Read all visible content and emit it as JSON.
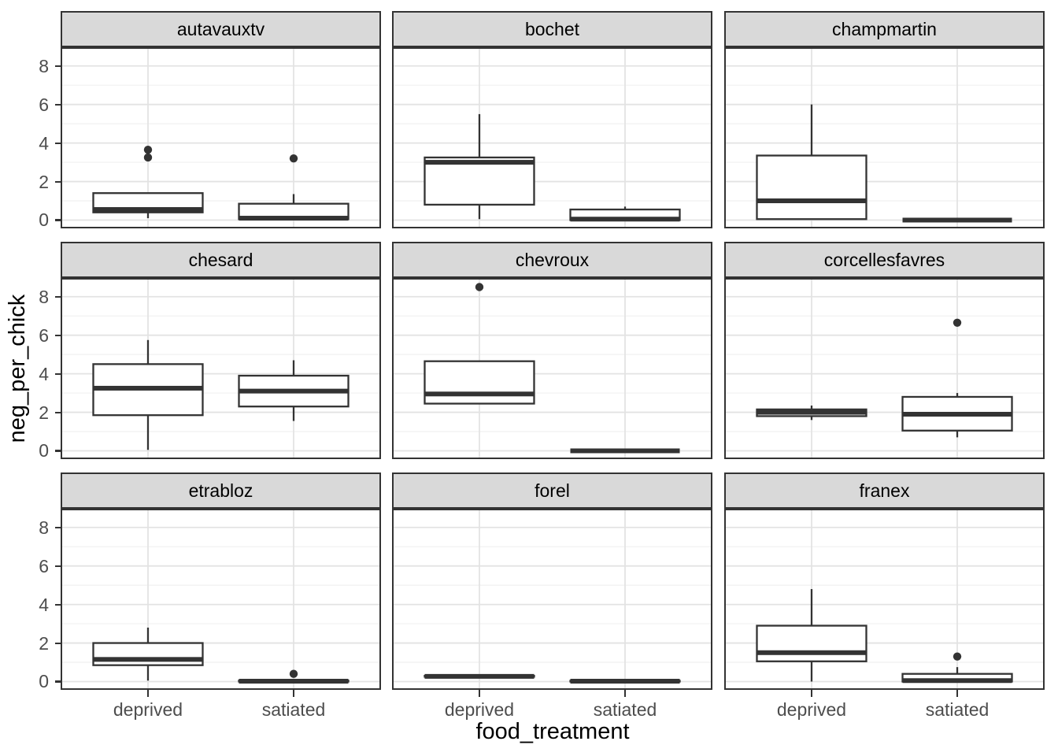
{
  "figure": {
    "xlabel": "food_treatment",
    "ylabel": "neg_per_chick",
    "x_categories": [
      "deprived",
      "satiated"
    ],
    "y_tick_labels": [
      "0",
      "2",
      "4",
      "6",
      "8"
    ],
    "y_major_ticks": [
      0,
      2,
      4,
      6,
      8
    ],
    "y_minor_ticks": [
      1,
      3,
      5,
      7
    ],
    "y_range": [
      -0.43,
      8.97
    ],
    "grid": true,
    "legend": "none",
    "facet_layout": "3x3"
  },
  "chart_data": {
    "type": "boxplot",
    "facet_titles": [
      "autavauxtv",
      "bochet",
      "champmartin",
      "chesard",
      "chevroux",
      "corcellesfavres",
      "etrabloz",
      "forel",
      "franex"
    ],
    "x": "food_treatment",
    "y": "neg_per_chick",
    "facets": [
      {
        "title": "autavauxtv",
        "boxes": [
          {
            "category": "deprived",
            "whisker_low": 0.1,
            "q1": 0.4,
            "median": 0.55,
            "q3": 1.4,
            "whisker_high": 1.4,
            "outliers": [
              3.25,
              3.65
            ]
          },
          {
            "category": "satiated",
            "whisker_low": 0.05,
            "q1": 0.05,
            "median": 0.1,
            "q3": 0.85,
            "whisker_high": 1.35,
            "outliers": [
              3.2
            ]
          }
        ]
      },
      {
        "title": "bochet",
        "boxes": [
          {
            "category": "deprived",
            "whisker_low": 0.05,
            "q1": 0.8,
            "median": 3.0,
            "q3": 3.25,
            "whisker_high": 5.5,
            "outliers": []
          },
          {
            "category": "satiated",
            "whisker_low": 0.0,
            "q1": 0.0,
            "median": 0.05,
            "q3": 0.55,
            "whisker_high": 0.7,
            "outliers": []
          }
        ]
      },
      {
        "title": "champmartin",
        "boxes": [
          {
            "category": "deprived",
            "whisker_low": 0.05,
            "q1": 0.05,
            "median": 1.0,
            "q3": 3.35,
            "whisker_high": 6.0,
            "outliers": []
          },
          {
            "category": "satiated",
            "whisker_low": 0.0,
            "q1": 0.0,
            "median": 0.0,
            "q3": 0.0,
            "whisker_high": 0.0,
            "outliers": []
          }
        ]
      },
      {
        "title": "chesard",
        "boxes": [
          {
            "category": "deprived",
            "whisker_low": 0.05,
            "q1": 1.85,
            "median": 3.25,
            "q3": 4.5,
            "whisker_high": 5.75,
            "outliers": []
          },
          {
            "category": "satiated",
            "whisker_low": 1.55,
            "q1": 2.3,
            "median": 3.1,
            "q3": 3.9,
            "whisker_high": 4.7,
            "outliers": []
          }
        ]
      },
      {
        "title": "chevroux",
        "boxes": [
          {
            "category": "deprived",
            "whisker_low": 2.45,
            "q1": 2.45,
            "median": 2.95,
            "q3": 4.65,
            "whisker_high": 4.65,
            "outliers": [
              8.5
            ]
          },
          {
            "category": "satiated",
            "whisker_low": 0.0,
            "q1": 0.0,
            "median": 0.0,
            "q3": 0.0,
            "whisker_high": 0.0,
            "outliers": []
          }
        ]
      },
      {
        "title": "corcellesfavres",
        "boxes": [
          {
            "category": "deprived",
            "whisker_low": 1.6,
            "q1": 1.8,
            "median": 2.0,
            "q3": 2.15,
            "whisker_high": 2.35,
            "outliers": []
          },
          {
            "category": "satiated",
            "whisker_low": 0.7,
            "q1": 1.05,
            "median": 1.9,
            "q3": 2.8,
            "whisker_high": 3.0,
            "outliers": [
              6.65
            ]
          }
        ]
      },
      {
        "title": "etrabloz",
        "boxes": [
          {
            "category": "deprived",
            "whisker_low": 0.05,
            "q1": 0.85,
            "median": 1.15,
            "q3": 2.0,
            "whisker_high": 2.8,
            "outliers": []
          },
          {
            "category": "satiated",
            "whisker_low": 0.0,
            "q1": 0.0,
            "median": 0.02,
            "q3": 0.05,
            "whisker_high": 0.05,
            "outliers": [
              0.4
            ]
          }
        ]
      },
      {
        "title": "forel",
        "boxes": [
          {
            "category": "deprived",
            "whisker_low": 0.25,
            "q1": 0.25,
            "median": 0.27,
            "q3": 0.3,
            "whisker_high": 0.3,
            "outliers": []
          },
          {
            "category": "satiated",
            "whisker_low": 0.0,
            "q1": 0.0,
            "median": 0.02,
            "q3": 0.04,
            "whisker_high": 0.04,
            "outliers": []
          }
        ]
      },
      {
        "title": "franex",
        "boxes": [
          {
            "category": "deprived",
            "whisker_low": 0.0,
            "q1": 1.05,
            "median": 1.5,
            "q3": 2.9,
            "whisker_high": 4.8,
            "outliers": []
          },
          {
            "category": "satiated",
            "whisker_low": 0.0,
            "q1": 0.0,
            "median": 0.05,
            "q3": 0.4,
            "whisker_high": 0.75,
            "outliers": [
              1.3
            ]
          }
        ]
      }
    ]
  },
  "colors": {
    "box_stroke": "#333333",
    "box_fill": "#FFFFFF",
    "panel_border": "#333333",
    "strip_fill": "#D9D9D9",
    "grid_major": "#E3E3E3",
    "grid_minor": "#F0F0F0",
    "tick_mark": "#333333",
    "tick_label": "#4D4D4D",
    "axis_title": "#000000",
    "background": "#FFFFFF"
  }
}
